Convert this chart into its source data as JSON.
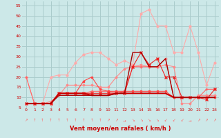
{
  "bg_color": "#cce8e8",
  "grid_color": "#aacccc",
  "x": [
    0,
    1,
    2,
    3,
    4,
    5,
    6,
    7,
    8,
    9,
    10,
    11,
    12,
    13,
    14,
    15,
    16,
    17,
    18,
    19,
    20,
    21,
    22,
    23
  ],
  "series": [
    {
      "color": "#ffaaaa",
      "lw": 0.8,
      "marker": "o",
      "ms": 2.0,
      "data": [
        20,
        7,
        7,
        20,
        21,
        21,
        27,
        31,
        32,
        32,
        29,
        26,
        28,
        26,
        51,
        53,
        45,
        45,
        32,
        32,
        45,
        32,
        16,
        27
      ]
    },
    {
      "color": "#ff8888",
      "lw": 0.8,
      "marker": "D",
      "ms": 1.5,
      "data": [
        7,
        7,
        7,
        8,
        11,
        16,
        16,
        16,
        16,
        15,
        15,
        20,
        24,
        25,
        26,
        25,
        25,
        26,
        25,
        7,
        7,
        11,
        11,
        11
      ]
    },
    {
      "color": "#ff6666",
      "lw": 0.8,
      "marker": "+",
      "ms": 3,
      "data": [
        20,
        7,
        7,
        7,
        12,
        12,
        12,
        12,
        13,
        13,
        13,
        12,
        13,
        25,
        25,
        25,
        25,
        29,
        10,
        10,
        10,
        10,
        14,
        14
      ]
    },
    {
      "color": "#ff4444",
      "lw": 0.8,
      "marker": "s",
      "ms": 1.5,
      "data": [
        7,
        7,
        7,
        7,
        12,
        12,
        12,
        18,
        20,
        14,
        13,
        13,
        13,
        13,
        13,
        13,
        13,
        13,
        10,
        10,
        10,
        10,
        10,
        10
      ]
    },
    {
      "color": "#ee2222",
      "lw": 0.8,
      "marker": "x",
      "ms": 3,
      "data": [
        7,
        7,
        7,
        7,
        12,
        12,
        12,
        12,
        12,
        12,
        12,
        12,
        12,
        25,
        32,
        26,
        29,
        20,
        20,
        10,
        10,
        10,
        9,
        14
      ]
    },
    {
      "color": "#cc0000",
      "lw": 1.5,
      "marker": null,
      "ms": 0,
      "data": [
        7,
        7,
        7,
        7,
        12,
        12,
        12,
        12,
        11,
        11,
        11,
        12,
        12,
        12,
        12,
        12,
        12,
        12,
        10,
        10,
        10,
        10,
        10,
        10
      ]
    },
    {
      "color": "#aa0000",
      "lw": 1.0,
      "marker": null,
      "ms": 0,
      "data": [
        7,
        7,
        7,
        7,
        11,
        11,
        11,
        11,
        11,
        11,
        11,
        12,
        12,
        32,
        32,
        25,
        25,
        29,
        10,
        10,
        10,
        10,
        10,
        10
      ]
    }
  ],
  "arrow_symbols": [
    "↗",
    "↑",
    "↑",
    "↑",
    "↑",
    "↑",
    "↑",
    "↑",
    "↑",
    "↑",
    "↗",
    "↗",
    "→",
    "↘",
    "↘",
    "↘",
    "↘",
    "↙",
    "↙",
    "↙",
    "→",
    "↗",
    "↗",
    "↗"
  ],
  "xlim": [
    -0.5,
    23.5
  ],
  "ylim": [
    5,
    57
  ],
  "yticks": [
    5,
    10,
    15,
    20,
    25,
    30,
    35,
    40,
    45,
    50,
    55
  ],
  "xticks": [
    0,
    1,
    2,
    3,
    4,
    5,
    6,
    7,
    8,
    9,
    10,
    11,
    12,
    13,
    14,
    15,
    16,
    17,
    18,
    19,
    20,
    21,
    22,
    23
  ],
  "xlabel": "Vent moyen/en rafales ( km/h )",
  "tick_color": "#cc0000",
  "label_color": "#cc0000",
  "arrow_color": "#ff6666"
}
